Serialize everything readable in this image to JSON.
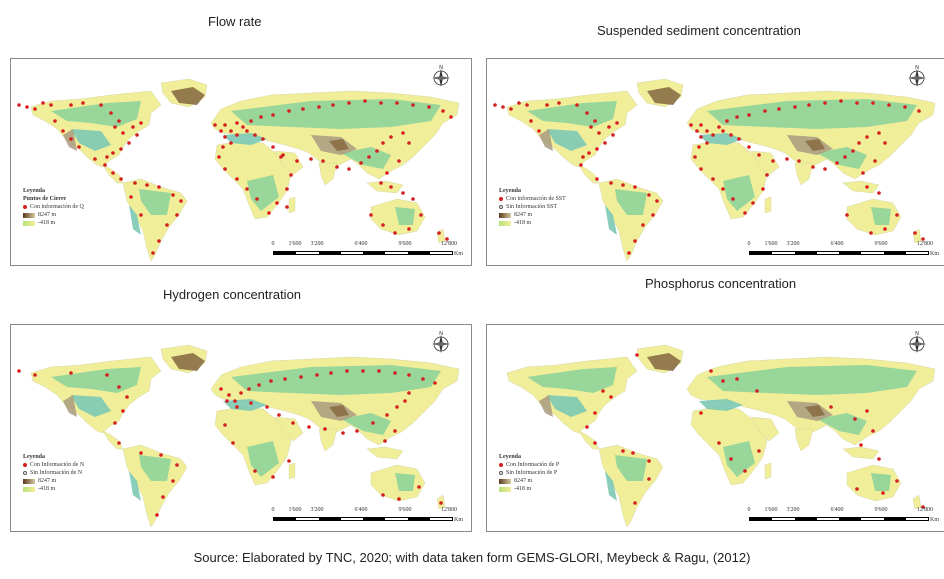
{
  "panels": [
    {
      "title": "Flow rate",
      "legend": {
        "heading": "Leyenda",
        "subheading": "Puntos de Cierre",
        "items": [
          {
            "marker": "red-dot",
            "label": "Con información de Q"
          }
        ],
        "elev_high": "8247 m",
        "elev_low": "-418 m"
      }
    },
    {
      "title": "Suspended sediment concentration",
      "legend": {
        "heading": "Leyenda",
        "subheading": "",
        "items": [
          {
            "marker": "red-dot",
            "label": "Con información de SST"
          },
          {
            "marker": "open-dot",
            "label": "Sin Información SST"
          }
        ],
        "elev_high": "8247 m",
        "elev_low": "-418 m"
      }
    },
    {
      "title": "Hydrogen concentration",
      "legend": {
        "heading": "Leyenda",
        "subheading": "",
        "items": [
          {
            "marker": "red-dot",
            "label": "Con Información de N"
          },
          {
            "marker": "open-dot",
            "label": "Sin Información de N"
          }
        ],
        "elev_high": "8247 m",
        "elev_low": "-418 m"
      }
    },
    {
      "title": "Phosphorus  concentration",
      "legend": {
        "heading": "Leyenda",
        "subheading": "",
        "items": [
          {
            "marker": "red-dot",
            "label": "Con Información de P"
          },
          {
            "marker": "open-dot",
            "label": "Sin Información de P"
          }
        ],
        "elev_high": "8247 m",
        "elev_low": "-418 m"
      }
    }
  ],
  "scale": {
    "ticks": [
      "0",
      "1'600",
      "3'200",
      "6'400",
      "9'600",
      "12'800"
    ],
    "unit": "Km"
  },
  "compass_letter": "N",
  "source": "Source: Elaborated by TNC, 2020; with data taken form GEMS-GLORI, Meybeck & Ragu, (2012)",
  "colors": {
    "ocean": "#ffffff",
    "lowland": "#f1ee9a",
    "green": "#8ed39a",
    "teal": "#7cc9b4",
    "highland": "#a99a80",
    "peak": "#8a6e45",
    "point": "#d42020"
  }
}
